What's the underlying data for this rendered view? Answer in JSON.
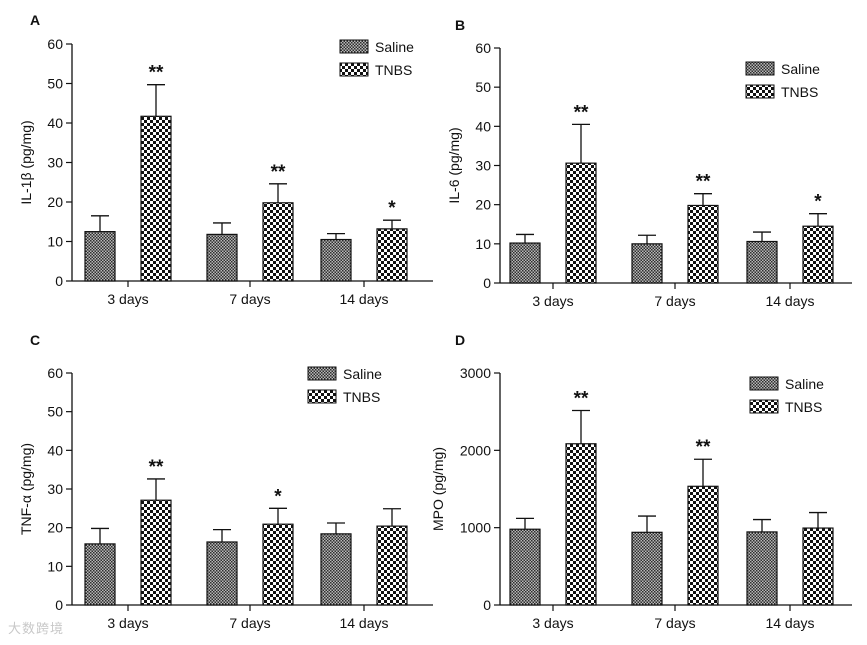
{
  "chart_data": [
    {
      "type": "bar",
      "panel_label": "A",
      "ylabel": "IL-1β (pg/mg)",
      "xlabel": "",
      "ylim": [
        0,
        60
      ],
      "yticks": [
        0,
        10,
        20,
        30,
        40,
        50,
        60
      ],
      "categories": [
        "3 days",
        "7 days",
        "14 days"
      ],
      "series": [
        {
          "name": "Saline",
          "values": [
            12.5,
            11.8,
            10.5
          ],
          "errors": [
            4.0,
            2.9,
            1.5
          ],
          "sig": [
            "",
            "",
            ""
          ]
        },
        {
          "name": "TNBS",
          "values": [
            41.7,
            19.8,
            13.2
          ],
          "errors": [
            8.0,
            4.8,
            2.2
          ],
          "sig": [
            "**",
            "**",
            "*"
          ]
        }
      ],
      "legend_position": "top-right"
    },
    {
      "type": "bar",
      "panel_label": "B",
      "ylabel": "IL-6 (pg/mg)",
      "xlabel": "",
      "ylim": [
        0,
        60
      ],
      "yticks": [
        0,
        10,
        20,
        30,
        40,
        50,
        60
      ],
      "categories": [
        "3 days",
        "7 days",
        "14 days"
      ],
      "series": [
        {
          "name": "Saline",
          "values": [
            10.2,
            10.0,
            10.6
          ],
          "errors": [
            2.2,
            2.2,
            2.4
          ],
          "sig": [
            "",
            "",
            ""
          ]
        },
        {
          "name": "TNBS",
          "values": [
            30.6,
            19.8,
            14.5
          ],
          "errors": [
            9.9,
            3.0,
            3.2
          ],
          "sig": [
            "**",
            "**",
            "*"
          ]
        }
      ],
      "legend_position": "top-right"
    },
    {
      "type": "bar",
      "panel_label": "C",
      "ylabel": "TNF-α (pg/mg)",
      "xlabel": "",
      "ylim": [
        0,
        60
      ],
      "yticks": [
        0,
        10,
        20,
        30,
        40,
        50,
        60
      ],
      "categories": [
        "3 days",
        "7 days",
        "14 days"
      ],
      "series": [
        {
          "name": "Saline",
          "values": [
            15.8,
            16.3,
            18.4
          ],
          "errors": [
            4.0,
            3.2,
            2.8
          ],
          "sig": [
            "",
            "",
            ""
          ]
        },
        {
          "name": "TNBS",
          "values": [
            27.1,
            20.9,
            20.4
          ],
          "errors": [
            5.5,
            4.1,
            4.5
          ],
          "sig": [
            "**",
            "*",
            ""
          ]
        }
      ],
      "legend_position": "top-right"
    },
    {
      "type": "bar",
      "panel_label": "D",
      "ylabel": "MPO (pg/mg)",
      "xlabel": "",
      "ylim": [
        0,
        3000
      ],
      "yticks": [
        0,
        1000,
        2000,
        3000
      ],
      "categories": [
        "3 days",
        "7 days",
        "14 days"
      ],
      "series": [
        {
          "name": "Saline",
          "values": [
            980,
            940,
            945
          ],
          "errors": [
            140,
            210,
            160
          ],
          "sig": [
            "",
            "",
            ""
          ]
        },
        {
          "name": "TNBS",
          "values": [
            2085,
            1535,
            995
          ],
          "errors": [
            430,
            350,
            200
          ],
          "sig": [
            "**",
            "**",
            ""
          ]
        }
      ],
      "legend_position": "top-right"
    }
  ],
  "watermark": "大数跨境"
}
